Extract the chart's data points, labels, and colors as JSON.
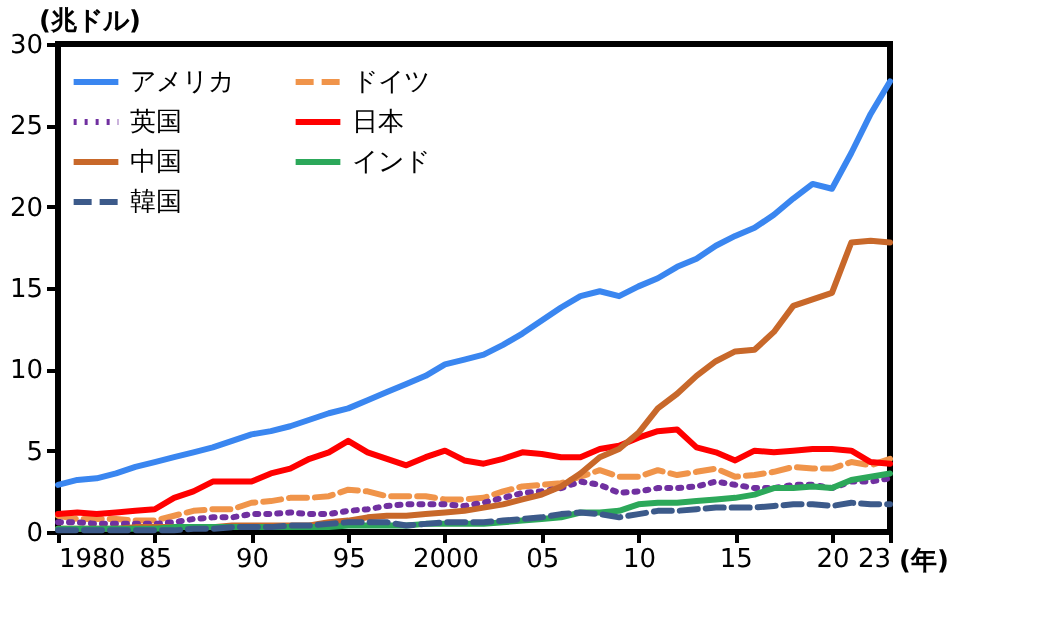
{
  "chart_data": {
    "type": "line",
    "xlabel": "(年)",
    "ylabel": "(兆ドル)",
    "x": [
      1980,
      1981,
      1982,
      1983,
      1984,
      1985,
      1986,
      1987,
      1988,
      1989,
      1990,
      1991,
      1992,
      1993,
      1994,
      1995,
      1996,
      1997,
      1998,
      1999,
      2000,
      2001,
      2002,
      2003,
      2004,
      2005,
      2006,
      2007,
      2008,
      2009,
      2010,
      2011,
      2012,
      2013,
      2014,
      2015,
      2016,
      2017,
      2018,
      2019,
      2020,
      2021,
      2022,
      2023
    ],
    "xlim": [
      1980,
      2023
    ],
    "xticks": [
      {
        "value": 1980,
        "label": "1980"
      },
      {
        "value": 1985,
        "label": "85"
      },
      {
        "value": 1990,
        "label": "90"
      },
      {
        "value": 1995,
        "label": "95"
      },
      {
        "value": 2000,
        "label": "2000"
      },
      {
        "value": 2005,
        "label": "05"
      },
      {
        "value": 2010,
        "label": "10"
      },
      {
        "value": 2015,
        "label": "15"
      },
      {
        "value": 2020,
        "label": "20"
      },
      {
        "value": 2023,
        "label": "23"
      }
    ],
    "ylim": [
      0,
      30
    ],
    "yticks": [
      0,
      5,
      10,
      15,
      20,
      25,
      30
    ],
    "legend": "top left",
    "series": [
      {
        "name": "アメリカ",
        "color": "#3a86f0",
        "line_style": "solid",
        "values": [
          2.9,
          3.2,
          3.3,
          3.6,
          4.0,
          4.3,
          4.6,
          4.9,
          5.2,
          5.6,
          6.0,
          6.2,
          6.5,
          6.9,
          7.3,
          7.6,
          8.1,
          8.6,
          9.1,
          9.6,
          10.3,
          10.6,
          10.9,
          11.5,
          12.2,
          13.0,
          13.8,
          14.5,
          14.8,
          14.5,
          15.1,
          15.6,
          16.3,
          16.8,
          17.6,
          18.2,
          18.7,
          19.5,
          20.5,
          21.4,
          21.1,
          23.3,
          25.7,
          27.7
        ]
      },
      {
        "name": "ドイツ",
        "color": "#f0944a",
        "line_style": "dashed",
        "values": [
          1.0,
          0.8,
          0.8,
          0.8,
          0.7,
          0.7,
          1.0,
          1.3,
          1.4,
          1.4,
          1.8,
          1.9,
          2.1,
          2.1,
          2.2,
          2.6,
          2.5,
          2.2,
          2.2,
          2.2,
          2.0,
          2.0,
          2.1,
          2.5,
          2.8,
          2.9,
          3.0,
          3.4,
          3.8,
          3.4,
          3.4,
          3.8,
          3.5,
          3.7,
          3.9,
          3.4,
          3.5,
          3.7,
          4.0,
          3.9,
          3.9,
          4.3,
          4.1,
          4.5
        ]
      },
      {
        "name": "英国",
        "color": "#7030a0",
        "line_style": "dotted",
        "values": [
          0.6,
          0.6,
          0.5,
          0.5,
          0.5,
          0.5,
          0.6,
          0.8,
          0.9,
          0.9,
          1.1,
          1.1,
          1.2,
          1.1,
          1.1,
          1.3,
          1.4,
          1.6,
          1.7,
          1.7,
          1.7,
          1.6,
          1.8,
          2.1,
          2.4,
          2.5,
          2.7,
          3.1,
          2.9,
          2.4,
          2.5,
          2.7,
          2.7,
          2.8,
          3.1,
          2.9,
          2.7,
          2.7,
          2.9,
          2.9,
          2.7,
          3.1,
          3.1,
          3.3
        ]
      },
      {
        "name": "日本",
        "color": "#ff0000",
        "line_style": "solid",
        "values": [
          1.1,
          1.2,
          1.1,
          1.2,
          1.3,
          1.4,
          2.1,
          2.5,
          3.1,
          3.1,
          3.1,
          3.6,
          3.9,
          4.5,
          4.9,
          5.6,
          4.9,
          4.5,
          4.1,
          4.6,
          5.0,
          4.4,
          4.2,
          4.5,
          4.9,
          4.8,
          4.6,
          4.6,
          5.1,
          5.3,
          5.8,
          6.2,
          6.3,
          5.2,
          4.9,
          4.4,
          5.0,
          4.9,
          5.0,
          5.1,
          5.1,
          5.0,
          4.3,
          4.2
        ]
      },
      {
        "name": "中国",
        "color": "#c8682a",
        "line_style": "solid",
        "values": [
          0.2,
          0.2,
          0.2,
          0.2,
          0.3,
          0.3,
          0.3,
          0.3,
          0.3,
          0.4,
          0.4,
          0.4,
          0.4,
          0.4,
          0.6,
          0.7,
          0.9,
          1.0,
          1.0,
          1.1,
          1.2,
          1.3,
          1.5,
          1.7,
          2.0,
          2.3,
          2.8,
          3.6,
          4.6,
          5.1,
          6.1,
          7.6,
          8.5,
          9.6,
          10.5,
          11.1,
          11.2,
          12.3,
          13.9,
          14.3,
          14.7,
          17.8,
          17.9,
          17.8
        ]
      },
      {
        "name": "インド",
        "color": "#2ca85a",
        "line_style": "solid",
        "values": [
          0.2,
          0.2,
          0.2,
          0.2,
          0.2,
          0.2,
          0.3,
          0.3,
          0.3,
          0.3,
          0.3,
          0.3,
          0.3,
          0.3,
          0.3,
          0.4,
          0.4,
          0.4,
          0.4,
          0.5,
          0.5,
          0.5,
          0.5,
          0.6,
          0.7,
          0.8,
          0.9,
          1.2,
          1.2,
          1.3,
          1.7,
          1.8,
          1.8,
          1.9,
          2.0,
          2.1,
          2.3,
          2.7,
          2.7,
          2.8,
          2.7,
          3.2,
          3.4,
          3.6
        ]
      },
      {
        "name": "韓国",
        "color": "#3c5a8a",
        "line_style": "dashed",
        "values": [
          0.1,
          0.1,
          0.1,
          0.1,
          0.1,
          0.1,
          0.1,
          0.2,
          0.2,
          0.3,
          0.3,
          0.3,
          0.4,
          0.4,
          0.5,
          0.6,
          0.6,
          0.6,
          0.4,
          0.5,
          0.6,
          0.6,
          0.6,
          0.7,
          0.8,
          0.9,
          1.1,
          1.2,
          1.1,
          0.9,
          1.1,
          1.3,
          1.3,
          1.4,
          1.5,
          1.5,
          1.5,
          1.6,
          1.7,
          1.7,
          1.6,
          1.8,
          1.7,
          1.7
        ]
      }
    ]
  }
}
